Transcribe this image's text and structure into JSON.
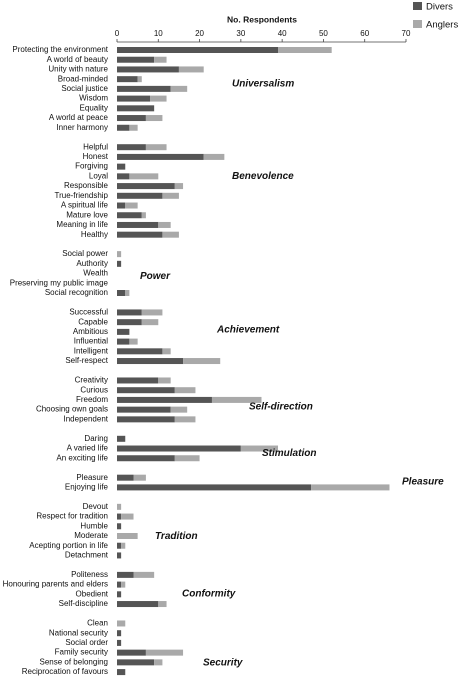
{
  "chart_data": {
    "type": "bar",
    "title": "No. Respondents",
    "xlim": [
      0,
      70
    ],
    "xticks": [
      0,
      10,
      20,
      30,
      40,
      50,
      60,
      70
    ],
    "series": [
      {
        "name": "Divers",
        "color": "#555555"
      },
      {
        "name": "Anglers",
        "color": "#a9a9a9"
      }
    ],
    "groups": [
      {
        "label": "Universalism",
        "categories": [
          "Protecting the environment",
          "A world of beauty",
          "Unity with nature",
          "Broad-minded",
          "Social justice",
          "Wisdom",
          "Equality",
          "A world at peace",
          "Inner harmony"
        ],
        "series": [
          {
            "values": [
              39,
              9,
              15,
              5,
              13,
              8,
              9,
              7,
              3
            ]
          },
          {
            "values": [
              13,
              3,
              6,
              1,
              4,
              4,
              0,
              4,
              2
            ]
          }
        ]
      },
      {
        "label": "Benevolence",
        "categories": [
          "Helpful",
          "Honest",
          "Forgiving",
          "Loyal",
          "Responsible",
          "True-friendship",
          "A spiritual life",
          "Mature love",
          "Meaning in life",
          "Healthy"
        ],
        "series": [
          {
            "values": [
              7,
              21,
              2,
              3,
              14,
              11,
              2,
              6,
              10,
              11
            ]
          },
          {
            "values": [
              5,
              5,
              0,
              7,
              2,
              4,
              3,
              1,
              3,
              4
            ]
          }
        ]
      },
      {
        "label": "Power",
        "categories": [
          "Social power",
          "Authority",
          "Wealth",
          "Preserving my public image",
          "Social recognition"
        ],
        "series": [
          {
            "values": [
              0,
              1,
              0,
              0,
              2
            ]
          },
          {
            "values": [
              1,
              0,
              0,
              0,
              1
            ]
          }
        ]
      },
      {
        "label": "Achievement",
        "categories": [
          "Successful",
          "Capable",
          "Ambitious",
          "Influential",
          "Intelligent",
          "Self-respect"
        ],
        "series": [
          {
            "values": [
              6,
              6,
              3,
              3,
              11,
              16
            ]
          },
          {
            "values": [
              5,
              4,
              0,
              2,
              2,
              9
            ]
          }
        ]
      },
      {
        "label": "Self-direction",
        "categories": [
          "Creativity",
          "Curious",
          "Freedom",
          "Choosing own goals",
          "Independent"
        ],
        "series": [
          {
            "values": [
              10,
              14,
              23,
              13,
              14
            ]
          },
          {
            "values": [
              3,
              5,
              12,
              4,
              5
            ]
          }
        ]
      },
      {
        "label": "Stimulation",
        "categories": [
          "Daring",
          "A varied life",
          "An exciting life"
        ],
        "series": [
          {
            "values": [
              2,
              30,
              14
            ]
          },
          {
            "values": [
              0,
              9,
              6
            ]
          }
        ]
      },
      {
        "label": "Pleasure",
        "categories": [
          "Pleasure",
          "Enjoying life"
        ],
        "series": [
          {
            "values": [
              4,
              47
            ]
          },
          {
            "values": [
              3,
              19
            ]
          }
        ]
      },
      {
        "label": "Tradition",
        "categories": [
          "Devout",
          "Respect for tradition",
          "Humble",
          "Moderate",
          "Acepting portion in life",
          "Detachment"
        ],
        "series": [
          {
            "values": [
              0,
              1,
              1,
              0,
              1,
              1
            ]
          },
          {
            "values": [
              1,
              3,
              0,
              5,
              1,
              0
            ]
          }
        ]
      },
      {
        "label": "Conformity",
        "categories": [
          "Politeness",
          "Honouring parents and elders",
          "Obedient",
          "Self-discipline"
        ],
        "series": [
          {
            "values": [
              4,
              1,
              1,
              10
            ]
          },
          {
            "values": [
              5,
              1,
              0,
              2
            ]
          }
        ]
      },
      {
        "label": "Security",
        "categories": [
          "Clean",
          "National security",
          "Social order",
          "Family security",
          "Sense of belonging",
          "Reciprocation of favours"
        ],
        "series": [
          {
            "values": [
              0,
              1,
              1,
              7,
              9,
              2
            ]
          },
          {
            "values": [
              2,
              0,
              0,
              9,
              2,
              0
            ]
          }
        ]
      }
    ]
  }
}
